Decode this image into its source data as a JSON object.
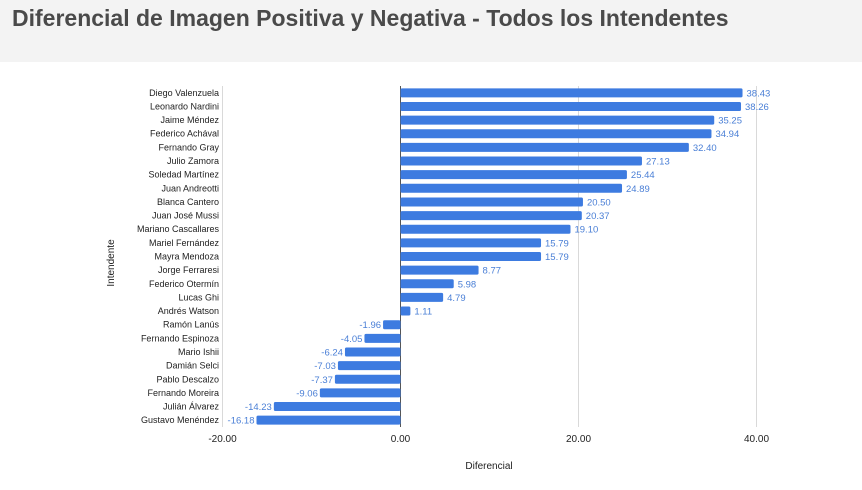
{
  "chart_data": {
    "type": "bar",
    "orientation": "horizontal",
    "title": "Diferencial de Imagen Positiva y Negativa - Todos los Intendentes",
    "xlabel": "Diferencial",
    "ylabel": "Intendente",
    "xlim": [
      -20,
      40
    ],
    "xticks": [
      -20,
      0,
      20,
      40
    ],
    "xtick_labels": [
      "-20.00",
      "0.00",
      "20.00",
      "40.00"
    ],
    "grid": true,
    "bar_color": "#3d7be0",
    "categories": [
      "Diego Valenzuela",
      "Leonardo Nardini",
      "Jaime Méndez",
      "Federico Achával",
      "Fernando Gray",
      "Julio Zamora",
      "Soledad Martínez",
      "Juan Andreotti",
      "Blanca Cantero",
      "Juan José Mussi",
      "Mariano Cascallares",
      "Mariel Fernández",
      "Mayra Mendoza",
      "Jorge Ferraresi",
      "Federico Otermín",
      "Lucas Ghi",
      "Andrés Watson",
      "Ramón Lanús",
      "Fernando Espinoza",
      "Mario Ishii",
      "Damián Selci",
      "Pablo Descalzo",
      "Fernando Moreira",
      "Julián Álvarez",
      "Gustavo Menéndez"
    ],
    "values": [
      38.43,
      38.26,
      35.25,
      34.94,
      32.4,
      27.13,
      25.44,
      24.89,
      20.5,
      20.37,
      19.1,
      15.79,
      15.79,
      8.77,
      5.98,
      4.79,
      1.11,
      -1.96,
      -4.05,
      -6.24,
      -7.03,
      -7.37,
      -9.06,
      -14.23,
      -16.18
    ],
    "value_labels": [
      "38.43",
      "38.26",
      "35.25",
      "34.94",
      "32.40",
      "27.13",
      "25.44",
      "24.89",
      "20.50",
      "20.37",
      "19.10",
      "15.79",
      "15.79",
      "8.77",
      "5.98",
      "4.79",
      "1.11",
      "-1.96",
      "-4.05",
      "-6.24",
      "-7.03",
      "-7.37",
      "-9.06",
      "-14.23",
      "-16.18"
    ]
  }
}
